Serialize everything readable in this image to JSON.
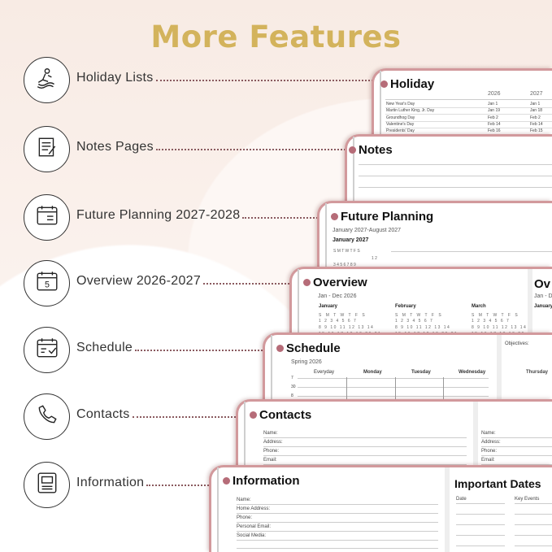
{
  "title": "More Features",
  "features": [
    {
      "label": "Holiday Lists",
      "icon": "jet-ski-icon"
    },
    {
      "label": "Notes Pages",
      "icon": "notes-icon"
    },
    {
      "label": "Future Planning 2027-2028",
      "icon": "calendar-icon"
    },
    {
      "label": "Overview 2026-2027",
      "icon": "calendar-5-icon"
    },
    {
      "label": "Schedule",
      "icon": "calendar-check-icon"
    },
    {
      "label": "Contacts",
      "icon": "phone-icon"
    },
    {
      "label": "Information",
      "icon": "id-card-icon"
    }
  ],
  "holiday": {
    "title": "Holiday",
    "years": [
      "2026",
      "2027"
    ],
    "rows": [
      [
        "New Year's Day",
        "Jan 1",
        "Jan 1"
      ],
      [
        "Martin Luther King, Jr. Day",
        "Jan 19",
        "Jan 18"
      ],
      [
        "Groundhog Day",
        "Feb 2",
        "Feb 2"
      ],
      [
        "Valentine's Day",
        "Feb 14",
        "Feb 14"
      ],
      [
        "Presidents' Day",
        "Feb 16",
        "Feb 15"
      ]
    ]
  },
  "notes": {
    "title": "Notes"
  },
  "future": {
    "title": "Future Planning",
    "subtitle": "January 2027-August 2027",
    "month": "January 2027",
    "weekdays": "S  M  T  W  T  F  S",
    "row1": "1  2",
    "row2": "3  4  5  6  7  8  9"
  },
  "overview": {
    "title": "Overview",
    "subtitle": "Jan - Dec 2026",
    "months": [
      "January",
      "February",
      "March"
    ],
    "weekdays": "S M T W T F S",
    "right_title": "Ov",
    "right_sub": "Jan - D",
    "right_month": "January"
  },
  "schedule": {
    "title": "Schedule",
    "subtitle": "Spring 2026",
    "columns": [
      "Everyday",
      "Monday",
      "Tuesday",
      "Wednesday"
    ],
    "times": [
      "7",
      "30",
      "8"
    ],
    "objectives": "Objectives:",
    "thursday": "Thursday"
  },
  "contacts": {
    "title": "Contacts",
    "fields": [
      "Name:",
      "Address:",
      "Phone:",
      "Email:"
    ]
  },
  "information": {
    "title": "Information",
    "fields": [
      "Name:",
      "Home Address:",
      "Phone:",
      "Personal Email:",
      "Social Media:"
    ],
    "right_title": "Important Dates",
    "date_col": "Date",
    "events_col": "Key Events"
  },
  "colors": {
    "title_gold": "#d3b35c",
    "card_border": "#d2999c",
    "dot": "#b66c78"
  }
}
